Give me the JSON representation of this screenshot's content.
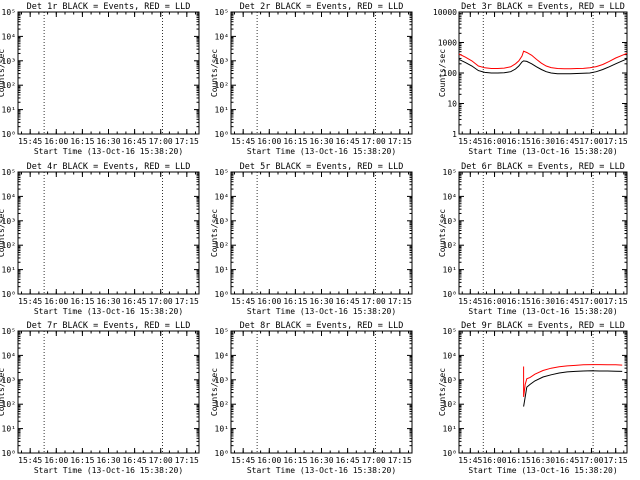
{
  "figure": {
    "background": "#ffffff",
    "axis_color": "#000000"
  },
  "chart_data": [
    {
      "type": "line",
      "title": "Det 1r BLACK = Events, RED = LLD",
      "xlabel": "Start Time (13-Oct-16 15:38:20)",
      "ylabel": "Counts/sec",
      "xlim": [
        "15:38",
        "17:22"
      ],
      "xticks": [
        "15:45",
        "16:00",
        "16:15",
        "16:30",
        "16:45",
        "17:00",
        "17:15"
      ],
      "ylim": [
        1,
        100000
      ],
      "yscale": "log",
      "yticks": [
        "10⁰",
        "10¹",
        "10²",
        "10³",
        "10⁴",
        "10⁵"
      ],
      "dotted_lines": [
        "15:53",
        "17:01"
      ],
      "grid": false,
      "series": []
    },
    {
      "type": "line",
      "title": "Det 2r BLACK = Events, RED = LLD",
      "xlabel": "Start Time (13-Oct-16 15:38:20)",
      "ylabel": "Counts/sec",
      "xlim": [
        "15:38",
        "17:22"
      ],
      "xticks": [
        "15:45",
        "16:00",
        "16:15",
        "16:30",
        "16:45",
        "17:00",
        "17:15"
      ],
      "ylim": [
        1,
        100000
      ],
      "yscale": "log",
      "yticks": [
        "10⁰",
        "10¹",
        "10²",
        "10³",
        "10⁴",
        "10⁵"
      ],
      "dotted_lines": [
        "15:53",
        "17:01"
      ],
      "grid": false,
      "series": []
    },
    {
      "type": "line",
      "title": "Det 3r BLACK = Events, RED = LLD",
      "xlabel": "Start Time (13-Oct-16 15:38:20)",
      "ylabel": "Counts/sec",
      "xlim": [
        "15:38",
        "17:22"
      ],
      "xticks": [
        "15:45",
        "16:00",
        "16:15",
        "16:30",
        "16:45",
        "17:00",
        "17:15"
      ],
      "ylim": [
        1,
        10000
      ],
      "yscale": "log",
      "yticks": [
        "1",
        "10",
        "100",
        "1000",
        "10000"
      ],
      "dotted_lines": [
        "15:53",
        "17:01"
      ],
      "grid": false,
      "series": [
        {
          "color": "#000000",
          "x": [
            "15:38",
            "15:42",
            "15:46",
            "15:50",
            "15:54",
            "15:58",
            "16:02",
            "16:06",
            "16:10",
            "16:13",
            "16:15",
            "16:17",
            "16:18",
            "16:20",
            "16:23",
            "16:26",
            "16:29",
            "16:32",
            "16:35",
            "16:39",
            "16:43",
            "16:47",
            "16:51",
            "16:55",
            "16:59",
            "17:03",
            "17:07",
            "17:11",
            "17:15",
            "17:19",
            "17:22"
          ],
          "values": [
            280,
            220,
            170,
            120,
            105,
            100,
            100,
            102,
            110,
            135,
            170,
            230,
            250,
            240,
            200,
            160,
            130,
            110,
            100,
            95,
            95,
            95,
            96,
            98,
            100,
            110,
            130,
            160,
            200,
            250,
            290
          ]
        },
        {
          "color": "#ff0000",
          "x": [
            "15:38",
            "15:42",
            "15:46",
            "15:50",
            "15:54",
            "15:58",
            "16:02",
            "16:06",
            "16:10",
            "16:13",
            "16:15",
            "16:17",
            "16:18",
            "16:20",
            "16:23",
            "16:26",
            "16:29",
            "16:32",
            "16:35",
            "16:39",
            "16:43",
            "16:47",
            "16:51",
            "16:55",
            "16:59",
            "17:03",
            "17:07",
            "17:11",
            "17:15",
            "17:19",
            "17:22"
          ],
          "values": [
            420,
            330,
            250,
            170,
            148,
            140,
            140,
            145,
            160,
            200,
            250,
            360,
            520,
            470,
            380,
            280,
            210,
            170,
            150,
            140,
            138,
            138,
            140,
            142,
            148,
            162,
            190,
            240,
            310,
            380,
            440
          ]
        }
      ]
    },
    {
      "type": "line",
      "title": "Det 4r BLACK = Events, RED = LLD",
      "xlabel": "Start Time (13-Oct-16 15:38:20)",
      "ylabel": "Counts/sec",
      "xlim": [
        "15:38",
        "17:22"
      ],
      "xticks": [
        "15:45",
        "16:00",
        "16:15",
        "16:30",
        "16:45",
        "17:00",
        "17:15"
      ],
      "ylim": [
        1,
        100000
      ],
      "yscale": "log",
      "yticks": [
        "10⁰",
        "10¹",
        "10²",
        "10³",
        "10⁴",
        "10⁵"
      ],
      "dotted_lines": [
        "15:53",
        "17:01"
      ],
      "grid": false,
      "series": []
    },
    {
      "type": "line",
      "title": "Det 5r BLACK = Events, RED = LLD",
      "xlabel": "Start Time (13-Oct-16 15:38:20)",
      "ylabel": "Counts/sec",
      "xlim": [
        "15:38",
        "17:22"
      ],
      "xticks": [
        "15:45",
        "16:00",
        "16:15",
        "16:30",
        "16:45",
        "17:00",
        "17:15"
      ],
      "ylim": [
        1,
        100000
      ],
      "yscale": "log",
      "yticks": [
        "10⁰",
        "10¹",
        "10²",
        "10³",
        "10⁴",
        "10⁵"
      ],
      "dotted_lines": [
        "15:53",
        "17:01"
      ],
      "grid": false,
      "series": []
    },
    {
      "type": "line",
      "title": "Det 6r BLACK = Events, RED = LLD",
      "xlabel": "Start Time (13-Oct-16 15:38:20)",
      "ylabel": "Counts/sec",
      "xlim": [
        "15:38",
        "17:22"
      ],
      "xticks": [
        "15:45",
        "16:00",
        "16:15",
        "16:30",
        "16:45",
        "17:00",
        "17:15"
      ],
      "ylim": [
        1,
        100000
      ],
      "yscale": "log",
      "yticks": [
        "10⁰",
        "10¹",
        "10²",
        "10³",
        "10⁴",
        "10⁵"
      ],
      "dotted_lines": [
        "15:53",
        "17:01"
      ],
      "grid": false,
      "series": []
    },
    {
      "type": "line",
      "title": "Det 7r BLACK = Events, RED = LLD",
      "xlabel": "Start Time (13-Oct-16 15:38:20)",
      "ylabel": "Counts/sec",
      "xlim": [
        "15:38",
        "17:22"
      ],
      "xticks": [
        "15:45",
        "16:00",
        "16:15",
        "16:30",
        "16:45",
        "17:00",
        "17:15"
      ],
      "ylim": [
        1,
        100000
      ],
      "yscale": "log",
      "yticks": [
        "10⁰",
        "10¹",
        "10²",
        "10³",
        "10⁴",
        "10⁵"
      ],
      "dotted_lines": [
        "15:53",
        "17:01"
      ],
      "grid": false,
      "series": []
    },
    {
      "type": "line",
      "title": "Det 8r BLACK = Events, RED = LLD",
      "xlabel": "Start Time (13-Oct-16 15:38:20)",
      "ylabel": "Counts/sec",
      "xlim": [
        "15:38",
        "17:22"
      ],
      "xticks": [
        "15:45",
        "16:00",
        "16:15",
        "16:30",
        "16:45",
        "17:00",
        "17:15"
      ],
      "ylim": [
        1,
        100000
      ],
      "yscale": "log",
      "yticks": [
        "10⁰",
        "10¹",
        "10²",
        "10³",
        "10⁴",
        "10⁵"
      ],
      "dotted_lines": [
        "15:53",
        "17:01"
      ],
      "grid": false,
      "series": []
    },
    {
      "type": "line",
      "title": "Det 9r BLACK = Events, RED = LLD",
      "xlabel": "Start Time (13-Oct-16 15:38:20)",
      "ylabel": "Counts/sec",
      "xlim": [
        "15:38",
        "17:22"
      ],
      "xticks": [
        "15:45",
        "16:00",
        "16:15",
        "16:30",
        "16:45",
        "17:00",
        "17:15"
      ],
      "ylim": [
        1,
        100000
      ],
      "yscale": "log",
      "yticks": [
        "10⁰",
        "10¹",
        "10²",
        "10³",
        "10⁴",
        "10⁵"
      ],
      "dotted_lines": [
        "15:53",
        "17:01"
      ],
      "grid": false,
      "series": [
        {
          "color": "#000000",
          "x": [
            "16:18",
            "16:19",
            "16:20",
            "16:22",
            "16:25",
            "16:30",
            "16:35",
            "16:40",
            "16:45",
            "16:50",
            "16:55",
            "17:00",
            "17:05",
            "17:10",
            "17:15",
            "17:19"
          ],
          "values": [
            80,
            200,
            500,
            650,
            900,
            1300,
            1600,
            1900,
            2100,
            2200,
            2300,
            2350,
            2300,
            2300,
            2250,
            2200
          ]
        },
        {
          "color": "#ff0000",
          "x": [
            "16:18",
            "16:18",
            "16:19",
            "16:20",
            "16:22",
            "16:25",
            "16:30",
            "16:35",
            "16:40",
            "16:45",
            "16:50",
            "16:55",
            "17:00",
            "17:05",
            "17:10",
            "17:15",
            "17:19"
          ],
          "values": [
            3500,
            200,
            650,
            1100,
            1250,
            1700,
            2400,
            3000,
            3400,
            3700,
            3900,
            4100,
            4200,
            4200,
            4100,
            4100,
            4000
          ]
        }
      ]
    }
  ]
}
